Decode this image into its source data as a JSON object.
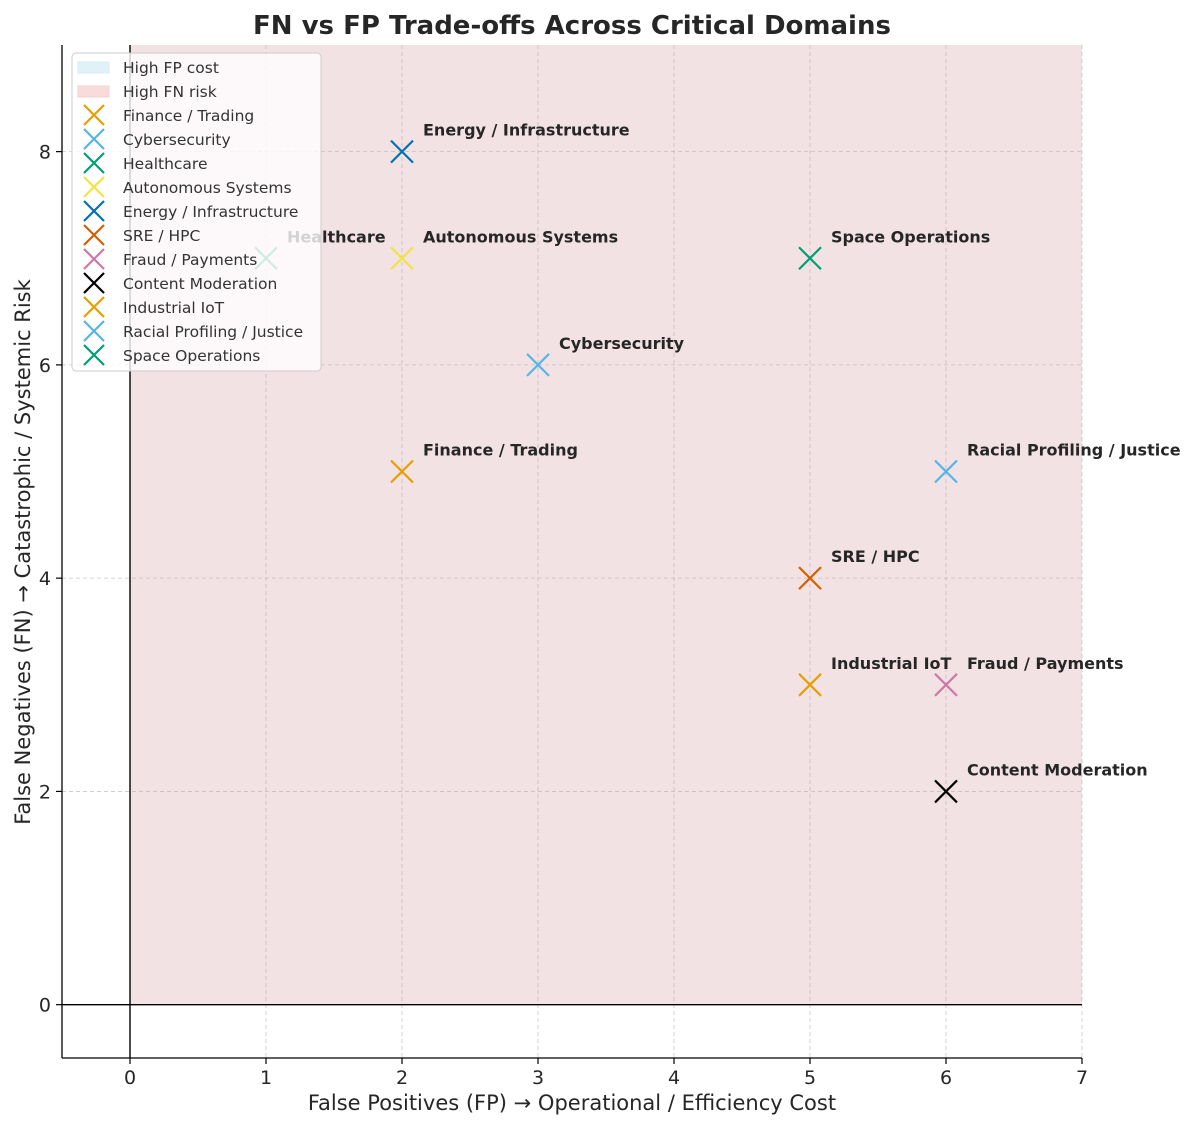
{
  "chart_data": {
    "type": "scatter",
    "title": "FN vs FP Trade-offs Across Critical Domains",
    "xlabel": "False Positives (FP) → Operational / Efficiency Cost",
    "ylabel": "False Negatives (FN) → Catastrophic / Systemic Risk",
    "xlim": [
      -0.5,
      7
    ],
    "ylim": [
      -0.5,
      9
    ],
    "xticks": [
      0,
      1,
      2,
      3,
      4,
      5,
      6,
      7
    ],
    "yticks": [
      0,
      2,
      4,
      6,
      8
    ],
    "grid": true,
    "legend_position": "top-left",
    "regions": [
      {
        "name": "High FP cost",
        "color": "#d8edf5"
      },
      {
        "name": "High FN risk",
        "color": "#f8d2d2"
      }
    ],
    "series": [
      {
        "name": "Finance / Trading",
        "x": 2,
        "y": 5,
        "color": "#e69f00"
      },
      {
        "name": "Cybersecurity",
        "x": 3,
        "y": 6,
        "color": "#56b4e9"
      },
      {
        "name": "Healthcare",
        "x": 1,
        "y": 7,
        "color": "#009e73"
      },
      {
        "name": "Autonomous Systems",
        "x": 2,
        "y": 7,
        "color": "#f0e442"
      },
      {
        "name": "Energy / Infrastructure",
        "x": 2,
        "y": 8,
        "color": "#0072b2"
      },
      {
        "name": "SRE / HPC",
        "x": 5,
        "y": 4,
        "color": "#d55e00"
      },
      {
        "name": "Fraud / Payments",
        "x": 6,
        "y": 3,
        "color": "#cc79a7"
      },
      {
        "name": "Content Moderation",
        "x": 6,
        "y": 2,
        "color": "#000000"
      },
      {
        "name": "Industrial IoT",
        "x": 5,
        "y": 3,
        "color": "#e69f00"
      },
      {
        "name": "Racial Profiling / Justice",
        "x": 6,
        "y": 5,
        "color": "#56b4e9"
      },
      {
        "name": "Space Operations",
        "x": 5,
        "y": 7,
        "color": "#009e73"
      }
    ]
  }
}
